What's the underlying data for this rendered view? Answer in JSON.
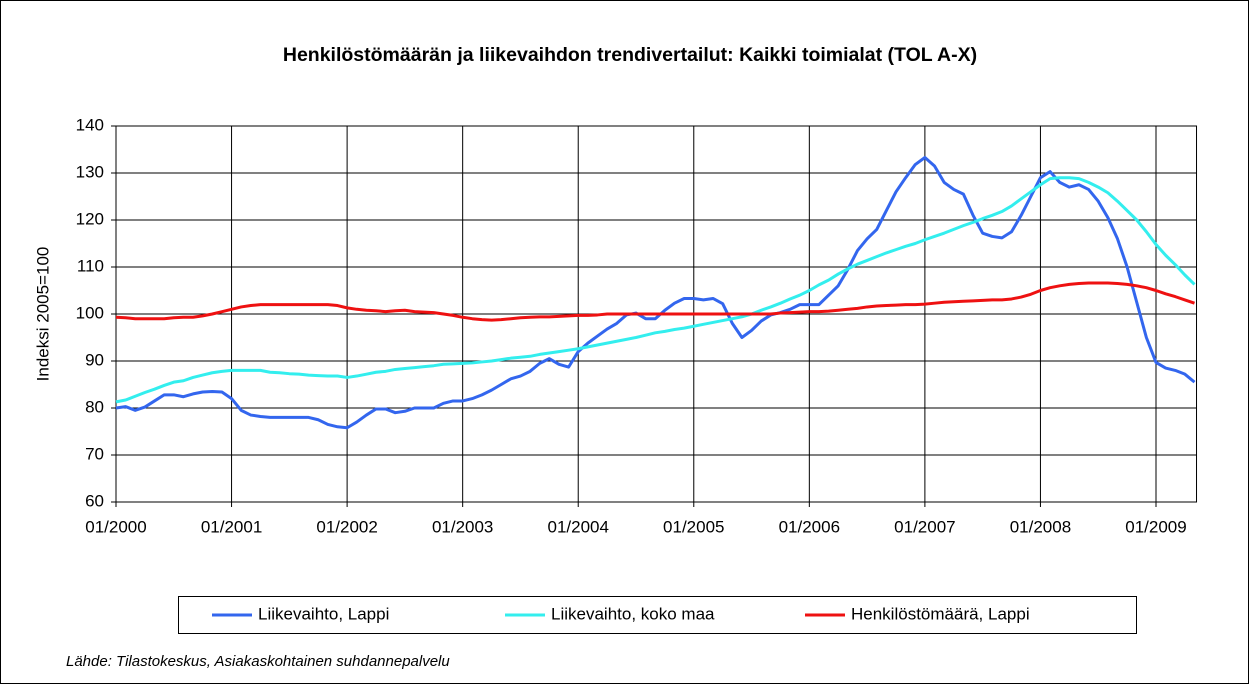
{
  "chart_data": {
    "type": "line",
    "title": "Henkilöstömäärän ja liikevaihdon trendivertailut: Kaikki toimialat (TOL A-X)",
    "y_label": "Indeksi 2005=100",
    "source": "Lähde: Tilastokeskus, Asiakaskohtainen suhdannepalvelu",
    "categories": [
      "01/2000",
      null,
      null,
      null,
      null,
      null,
      null,
      null,
      null,
      null,
      null,
      null,
      "01/2001",
      null,
      null,
      null,
      null,
      null,
      null,
      null,
      null,
      null,
      null,
      null,
      "01/2002",
      null,
      null,
      null,
      null,
      null,
      null,
      null,
      null,
      null,
      null,
      null,
      "01/2003",
      null,
      null,
      null,
      null,
      null,
      null,
      null,
      null,
      null,
      null,
      null,
      "01/2004",
      null,
      null,
      null,
      null,
      null,
      null,
      null,
      null,
      null,
      null,
      null,
      "01/2005",
      null,
      null,
      null,
      null,
      null,
      null,
      null,
      null,
      null,
      null,
      null,
      "01/2006",
      null,
      null,
      null,
      null,
      null,
      null,
      null,
      null,
      null,
      null,
      null,
      "01/2007",
      null,
      null,
      null,
      null,
      null,
      null,
      null,
      null,
      null,
      null,
      null,
      "01/2008",
      null,
      null,
      null,
      null,
      null,
      null,
      null,
      null,
      null,
      null,
      null,
      "01/2009",
      null,
      null,
      null,
      null
    ],
    "series": [
      {
        "name": "Liikevaihto, Lappi",
        "color": "#3366ee",
        "values": [
          80,
          80.3,
          79.5,
          80.2,
          81.5,
          82.8,
          82.8,
          82.4,
          83,
          83.4,
          83.5,
          83.4,
          82,
          79.5,
          78.5,
          78.2,
          78,
          78,
          78,
          78,
          78,
          77.5,
          76.5,
          76,
          75.8,
          77,
          78.5,
          79.8,
          79.8,
          79,
          79.3,
          80,
          80,
          80,
          81,
          81.5,
          81.5,
          82,
          82.8,
          83.8,
          85,
          86.2,
          86.8,
          87.8,
          89.5,
          90.5,
          89.3,
          88.7,
          92,
          93.8,
          95.3,
          96.8,
          98,
          99.8,
          100.2,
          99,
          99,
          100.8,
          102.3,
          103.3,
          103.3,
          103,
          103.3,
          102.2,
          98,
          95,
          96.5,
          98.5,
          99.8,
          100.3,
          101,
          102,
          102,
          102,
          104,
          106,
          109.5,
          113.5,
          116,
          118,
          122,
          126,
          129,
          131.8,
          133.3,
          131.5,
          128,
          126.5,
          125.5,
          121,
          117.2,
          116.5,
          116.2,
          117.5,
          121,
          125,
          129,
          130.3,
          128,
          127,
          127.5,
          126.5,
          124,
          120.5,
          116,
          110,
          102.5,
          95,
          89.7,
          88.5,
          88,
          87.2,
          85.5
        ]
      },
      {
        "name": "Liikevaihto, koko maa",
        "color": "#33eeee",
        "values": [
          81.3,
          81.7,
          82.5,
          83.3,
          84,
          84.8,
          85.5,
          85.8,
          86.5,
          87,
          87.5,
          87.8,
          88,
          88,
          88,
          88,
          87.6,
          87.5,
          87.3,
          87.2,
          87,
          86.9,
          86.8,
          86.8,
          86.5,
          86.8,
          87.2,
          87.6,
          87.8,
          88.2,
          88.4,
          88.6,
          88.8,
          89,
          89.3,
          89.4,
          89.5,
          89.6,
          89.8,
          90,
          90.3,
          90.6,
          90.8,
          91,
          91.4,
          91.7,
          92,
          92.3,
          92.6,
          93,
          93.4,
          93.8,
          94.2,
          94.6,
          95,
          95.5,
          96,
          96.3,
          96.7,
          97,
          97.4,
          97.8,
          98.2,
          98.6,
          99,
          99.4,
          100,
          100.8,
          101.5,
          102.3,
          103.2,
          104,
          105,
          106.2,
          107.2,
          108.5,
          109.6,
          110.6,
          111.4,
          112.2,
          113,
          113.7,
          114.4,
          115,
          115.8,
          116.5,
          117.2,
          118,
          118.8,
          119.5,
          120.3,
          121,
          121.8,
          123,
          124.5,
          126,
          127.5,
          128.8,
          129,
          129,
          128.8,
          128,
          127,
          125.8,
          124,
          122,
          120,
          117.5,
          114.8,
          112.5,
          110.5,
          108.3,
          106.3
        ]
      },
      {
        "name": "Henkilöstömäärä, Lappi",
        "color": "#ee1111",
        "values": [
          99.3,
          99.2,
          99,
          99,
          99,
          99,
          99.2,
          99.3,
          99.3,
          99.6,
          100,
          100.5,
          101,
          101.5,
          101.8,
          102,
          102,
          102,
          102,
          102,
          102,
          102,
          102,
          101.8,
          101.3,
          101,
          100.8,
          100.7,
          100.5,
          100.7,
          100.8,
          100.5,
          100.4,
          100.3,
          100,
          99.7,
          99.3,
          99,
          98.8,
          98.7,
          98.8,
          99,
          99.2,
          99.3,
          99.4,
          99.4,
          99.5,
          99.6,
          99.7,
          99.7,
          99.8,
          100,
          100,
          100,
          100,
          100,
          100,
          100,
          100,
          100,
          100,
          100,
          100,
          100,
          100,
          100,
          100,
          100,
          100,
          100.2,
          100.3,
          100.4,
          100.5,
          100.5,
          100.6,
          100.8,
          101,
          101.2,
          101.5,
          101.7,
          101.8,
          101.9,
          102,
          102,
          102.1,
          102.3,
          102.5,
          102.6,
          102.7,
          102.8,
          102.9,
          103,
          103,
          103.2,
          103.6,
          104.2,
          105,
          105.6,
          106,
          106.3,
          106.5,
          106.6,
          106.6,
          106.6,
          106.5,
          106.3,
          106,
          105.6,
          105,
          104.3,
          103.7,
          103,
          102.3
        ]
      }
    ],
    "ylim": [
      60,
      140
    ],
    "yticks": [
      60,
      70,
      80,
      90,
      100,
      110,
      120,
      130,
      140
    ],
    "grid": true,
    "legend": "bottom"
  }
}
